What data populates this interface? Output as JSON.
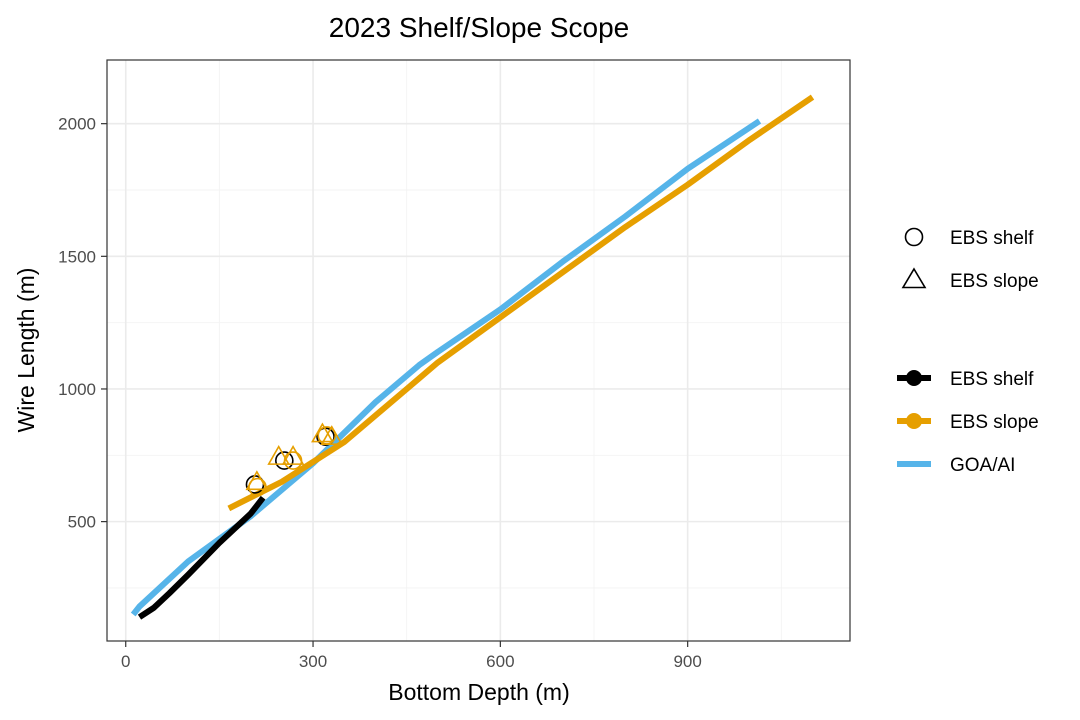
{
  "chart_data": {
    "type": "line",
    "title": "2023 Shelf/Slope Scope",
    "xlabel": "Bottom Depth (m)",
    "ylabel": "Wire Length (m)",
    "xlim": [
      -30,
      1160
    ],
    "ylim": [
      50,
      2240
    ],
    "x_ticks": [
      0,
      300,
      600,
      900
    ],
    "y_ticks": [
      500,
      1000,
      1500,
      2000
    ],
    "grid": true,
    "legend_position": "right",
    "colors": {
      "EBS shelf": "#000000",
      "EBS slope": "#E69F00",
      "GOA/AI": "#56B4E9"
    },
    "point_legend": [
      {
        "label": "EBS shelf",
        "shape": "circle"
      },
      {
        "label": "EBS slope",
        "shape": "triangle"
      }
    ],
    "line_legend": [
      {
        "label": "EBS shelf",
        "color": "#000000"
      },
      {
        "label": "EBS slope",
        "color": "#E69F00"
      },
      {
        "label": "GOA/AI",
        "color": "#56B4E9"
      }
    ],
    "lines": [
      {
        "name": "GOA/AI",
        "color": "#56B4E9",
        "points": [
          [
            12,
            150
          ],
          [
            22,
            180
          ],
          [
            100,
            350
          ],
          [
            200,
            520
          ],
          [
            300,
            720
          ],
          [
            400,
            950
          ],
          [
            470,
            1090
          ],
          [
            500,
            1140
          ],
          [
            600,
            1300
          ],
          [
            700,
            1480
          ],
          [
            800,
            1650
          ],
          [
            900,
            1830
          ],
          [
            1015,
            2010
          ]
        ]
      },
      {
        "name": "EBS slope",
        "color": "#E69F00",
        "points": [
          [
            165,
            550
          ],
          [
            250,
            650
          ],
          [
            350,
            800
          ],
          [
            450,
            1000
          ],
          [
            500,
            1100
          ],
          [
            600,
            1270
          ],
          [
            700,
            1440
          ],
          [
            800,
            1610
          ],
          [
            900,
            1770
          ],
          [
            1000,
            1940
          ],
          [
            1100,
            2100
          ]
        ]
      },
      {
        "name": "EBS shelf",
        "color": "#000000",
        "points": [
          [
            22,
            140
          ],
          [
            45,
            175
          ],
          [
            70,
            230
          ],
          [
            100,
            300
          ],
          [
            150,
            420
          ],
          [
            200,
            530
          ],
          [
            220,
            590
          ]
        ]
      }
    ],
    "points": [
      {
        "series": "EBS shelf",
        "shape": "circle",
        "color": "#000000",
        "x": 207,
        "y": 640
      },
      {
        "series": "EBS slope",
        "shape": "circle",
        "color": "#E69F00",
        "x": 211,
        "y": 630
      },
      {
        "series": "EBS shelf",
        "shape": "circle",
        "color": "#000000",
        "x": 254,
        "y": 730
      },
      {
        "series": "EBS slope",
        "shape": "circle",
        "color": "#E69F00",
        "x": 268,
        "y": 730
      },
      {
        "series": "EBS shelf",
        "shape": "circle",
        "color": "#000000",
        "x": 320,
        "y": 820
      },
      {
        "series": "EBS slope",
        "shape": "circle",
        "color": "#E69F00",
        "x": 322,
        "y": 825
      },
      {
        "series": "EBS slope",
        "shape": "triangle",
        "color": "#E69F00",
        "x": 210,
        "y": 650
      },
      {
        "series": "EBS slope",
        "shape": "triangle",
        "color": "#E69F00",
        "x": 245,
        "y": 745
      },
      {
        "series": "EBS slope",
        "shape": "triangle",
        "color": "#E69F00",
        "x": 268,
        "y": 745
      },
      {
        "series": "EBS slope",
        "shape": "triangle",
        "color": "#E69F00",
        "x": 315,
        "y": 830
      },
      {
        "series": "EBS slope",
        "shape": "triangle",
        "color": "#E69F00",
        "x": 330,
        "y": 820
      }
    ]
  }
}
